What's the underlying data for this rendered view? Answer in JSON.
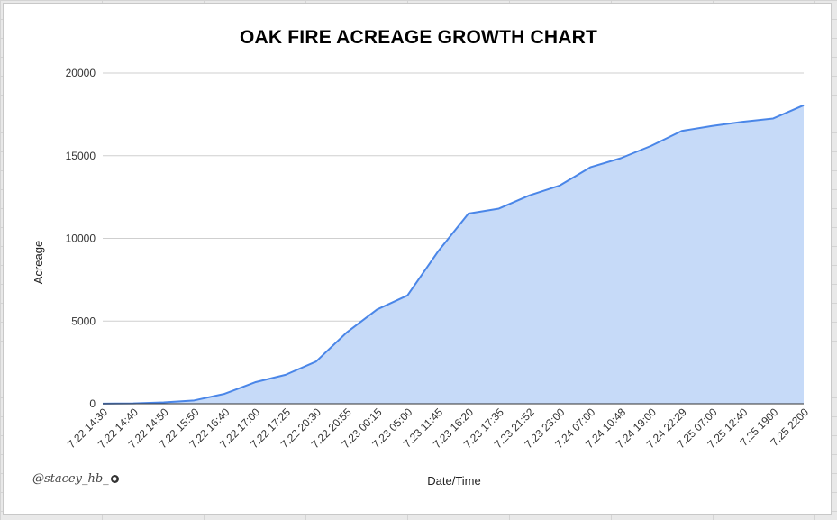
{
  "chart_data": {
    "type": "area",
    "title": "OAK FIRE ACREAGE GROWTH CHART",
    "xlabel": "Date/Time",
    "ylabel": "Acreage",
    "ylim": [
      0,
      20000
    ],
    "yticks": [
      0,
      5000,
      10000,
      15000,
      20000
    ],
    "grid": true,
    "colors": {
      "line": "#4a86e8",
      "fill": "#c6daf8"
    },
    "categories": [
      "7.22 14:30",
      "7.22 14:40",
      "7.22 14:50",
      "7.22 15:50",
      "7.22 16:40",
      "7.22 17:00",
      "7.22 17:25",
      "7.22 20:30",
      "7.22 20:55",
      "7.23 00:15",
      "7.23 05:00",
      "7.23 11:45",
      "7.23 16:20",
      "7.23 17:35",
      "7.23 21:52",
      "7.23 23:00",
      "7.24 07:00",
      "7.24 10:48",
      "7.24 19:00",
      "7.24 22:29",
      "7.25 07:00",
      "7.25 12:40",
      "7.25 1900",
      "7.25 2200"
    ],
    "series": [
      {
        "values": [
          10,
          20,
          80,
          200,
          600,
          1300,
          1750,
          2550,
          4300,
          5700,
          6550,
          9200,
          11500,
          11800,
          12600,
          13200,
          14300,
          14850,
          15600,
          16500,
          16800,
          17050,
          17250,
          18050
        ]
      }
    ]
  },
  "watermark": {
    "handle": "@stacey_hb_",
    "icon": "twitter-icon",
    "icon_glyph": "🐦"
  }
}
